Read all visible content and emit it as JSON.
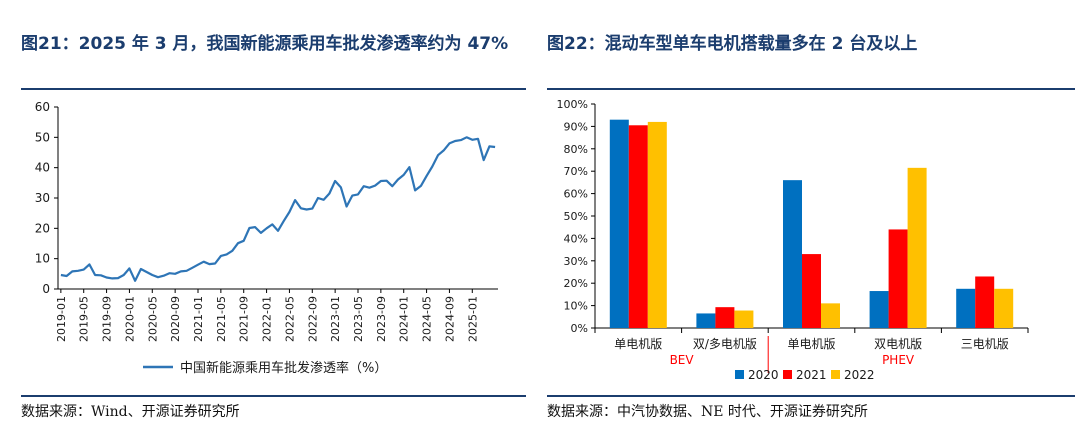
{
  "left": {
    "title": "图21：2025 年 3 月，我国新能源乘用车批发渗透率约为 47%",
    "source": "数据来源：Wind、开源证券研究所",
    "chart_data": {
      "type": "line",
      "ylim": [
        0,
        60
      ],
      "yticks": [
        0,
        10,
        20,
        30,
        40,
        50,
        60
      ],
      "xticks": [
        "2019-01",
        "2019-05",
        "2019-09",
        "2020-01",
        "2020-05",
        "2020-09",
        "2021-01",
        "2021-05",
        "2021-09",
        "2022-01",
        "2022-05",
        "2022-09",
        "2023-01",
        "2023-05",
        "2023-09",
        "2024-01",
        "2024-05",
        "2024-09",
        "2025-01"
      ],
      "series": [
        {
          "name": "中国新能源乘用车批发渗透率（%）",
          "color": "#2e75b6",
          "start": "2019-01",
          "values": [
            4.6,
            4.3,
            5.8,
            6.0,
            6.4,
            8.1,
            4.6,
            4.5,
            3.8,
            3.5,
            3.6,
            4.6,
            6.8,
            2.7,
            6.6,
            5.6,
            4.6,
            3.9,
            4.4,
            5.2,
            5.0,
            5.8,
            6.0,
            7.0,
            8.0,
            9.0,
            8.2,
            8.4,
            10.9,
            11.4,
            12.6,
            15.1,
            15.9,
            20.1,
            20.4,
            18.5,
            20.0,
            21.3,
            19.2,
            22.4,
            25.4,
            29.3,
            26.6,
            26.2,
            26.5,
            30.0,
            29.4,
            31.5,
            35.6,
            33.5,
            27.2,
            30.8,
            31.2,
            33.9,
            33.4,
            34.1,
            35.6,
            35.7,
            33.9,
            36.1,
            37.6,
            40.2,
            32.5,
            34.0,
            37.3,
            40.4,
            44.1,
            45.7,
            48.0,
            48.8,
            49.1,
            50.0,
            49.2,
            49.5,
            42.5,
            47.0,
            46.8
          ]
        }
      ]
    }
  },
  "right": {
    "title": "图22：混动车型单车电机搭载量多在 2 台及以上",
    "source": "数据来源：中汽协数据、NE 时代、开源证券研究所",
    "chart_data": {
      "type": "bar",
      "categories": [
        "单电机版",
        "双/多电机版",
        "单电机版",
        "双电机版",
        "三电机版"
      ],
      "groups": [
        {
          "label": "BEV",
          "from": 0,
          "to": 1
        },
        {
          "label": "PHEV",
          "from": 2,
          "to": 4
        }
      ],
      "ylim": [
        0,
        100
      ],
      "yticks": [
        "0%",
        "10%",
        "20%",
        "30%",
        "40%",
        "50%",
        "60%",
        "70%",
        "80%",
        "90%",
        "100%"
      ],
      "series": [
        {
          "name": "2020",
          "color": "#0070c0",
          "values": [
            93,
            6.5,
            66,
            16.5,
            17.5
          ]
        },
        {
          "name": "2021",
          "color": "#ff0000",
          "values": [
            90.5,
            9.3,
            33,
            44,
            23
          ]
        },
        {
          "name": "2022",
          "color": "#ffc000",
          "values": [
            92,
            7.8,
            11,
            71.5,
            17.5
          ]
        }
      ],
      "group_label_color": "#ff0000"
    }
  }
}
